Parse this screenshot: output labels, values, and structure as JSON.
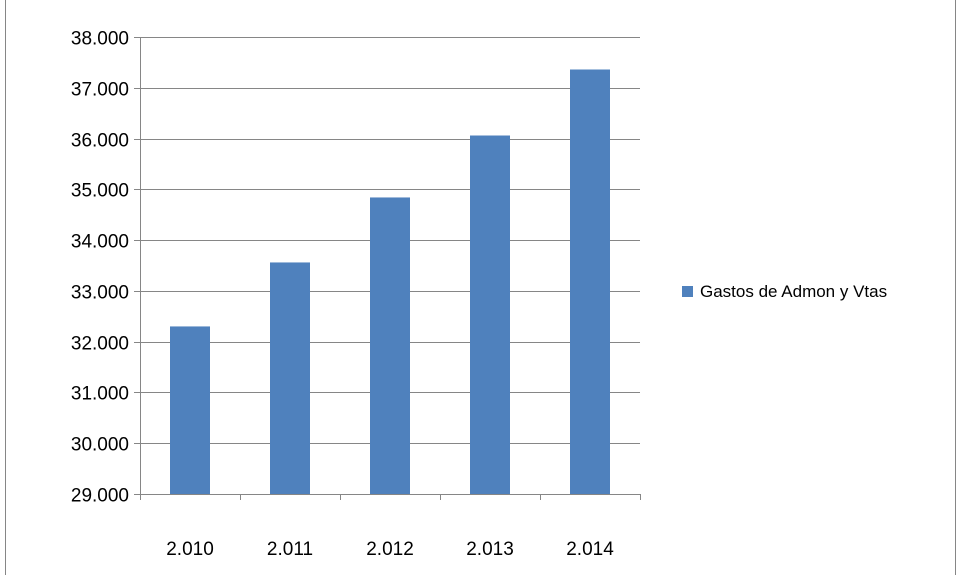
{
  "chart_data": {
    "type": "bar",
    "title": "",
    "xlabel": "",
    "ylabel": "",
    "categories": [
      "2.010",
      "2.011",
      "2.012",
      "2.013",
      "2.014"
    ],
    "series": [
      {
        "name": "Gastos de Admon y Vtas",
        "color": "#4F81BD",
        "values": [
          32300,
          33560,
          34840,
          36060,
          37360
        ]
      }
    ],
    "ylim": [
      29000,
      38000
    ],
    "yticks": [
      29000,
      30000,
      31000,
      32000,
      33000,
      34000,
      35000,
      36000,
      37000,
      38000
    ],
    "ytick_labels": [
      "29.000",
      "30.000",
      "31.000",
      "32.000",
      "33.000",
      "34.000",
      "35.000",
      "36.000",
      "37.000",
      "38.000"
    ],
    "grid": "horizontal",
    "legend_position": "right"
  }
}
